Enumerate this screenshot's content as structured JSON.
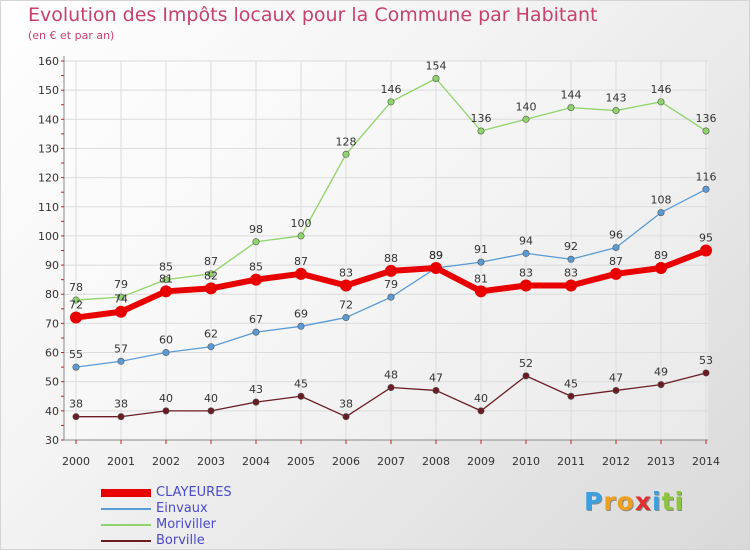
{
  "title": "Evolution des Impôts locaux pour la Commune par Habitant",
  "subtitle": "(en € et par an)",
  "brand": {
    "letters": [
      "P",
      "r",
      "o",
      "x",
      "i",
      "t",
      "i"
    ],
    "colors": [
      "#3aa0e0",
      "#f0a020",
      "#f0a020",
      "#e03030",
      "#3aa0e0",
      "#8cc63e",
      "#8cc63e"
    ]
  },
  "chart_data": {
    "type": "line",
    "title": "Evolution des Impôts locaux pour la Commune par Habitant",
    "subtitle": "(en € et par an)",
    "x": [
      "2000",
      "2001",
      "2002",
      "2003",
      "2004",
      "2005",
      "2006",
      "2007",
      "2008",
      "2009",
      "2010",
      "2011",
      "2012",
      "2013",
      "2014"
    ],
    "ylim": [
      30,
      160
    ],
    "yticks": [
      "30",
      "40",
      "50",
      "60",
      "70",
      "80",
      "90",
      "100",
      "110",
      "120",
      "130",
      "140",
      "150",
      "160"
    ],
    "grid": true,
    "legend_position": "bottom-left",
    "series": [
      {
        "name": "CLAYEURES",
        "color": "#e80000",
        "values": [
          72,
          74,
          81,
          82,
          85,
          87,
          83,
          88,
          89,
          81,
          83,
          83,
          87,
          89,
          95
        ]
      },
      {
        "name": "Einvaux",
        "color": "#5a9bd5",
        "values": [
          55,
          57,
          60,
          62,
          67,
          69,
          72,
          79,
          89,
          91,
          94,
          92,
          96,
          108,
          116
        ]
      },
      {
        "name": "Moriviller",
        "color": "#8fd46a",
        "values": [
          78,
          79,
          85,
          87,
          98,
          100,
          128,
          146,
          154,
          136,
          140,
          144,
          143,
          146,
          136
        ]
      },
      {
        "name": "Borville",
        "color": "#6b1c22",
        "values": [
          38,
          38,
          40,
          40,
          43,
          45,
          38,
          48,
          47,
          40,
          52,
          45,
          47,
          49,
          53
        ]
      }
    ]
  }
}
